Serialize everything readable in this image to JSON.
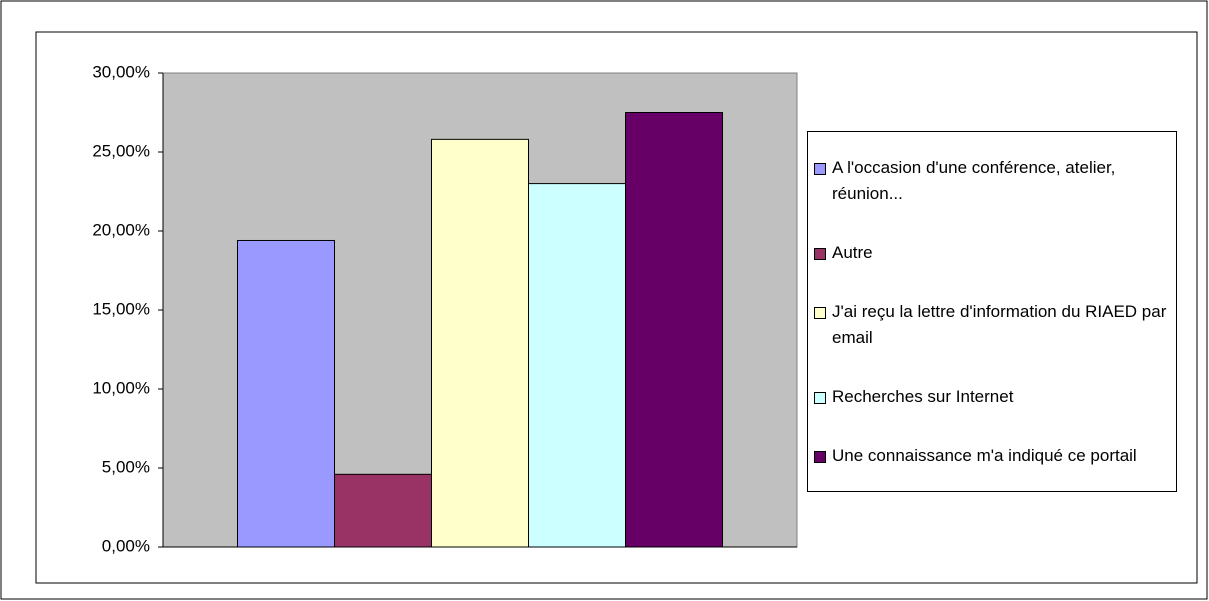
{
  "chart_data": {
    "type": "bar",
    "categories": [
      null
    ],
    "series": [
      {
        "name": "A l'occasion d'une conférence, atelier, réunion...",
        "color": "#9999ff",
        "values": [
          19.4
        ]
      },
      {
        "name": "Autre",
        "color": "#993366",
        "values": [
          4.6
        ]
      },
      {
        "name": "J'ai reçu la lettre d'information du RIAED par email",
        "color": "#ffffcc",
        "values": [
          25.8
        ]
      },
      {
        "name": "Recherches sur Internet",
        "color": "#ccffff",
        "values": [
          23.0
        ]
      },
      {
        "name": "Une connaissance m'a indiqué ce portail",
        "color": "#660066",
        "values": [
          27.5
        ]
      }
    ],
    "ylim": [
      0,
      30
    ],
    "yticks": [
      {
        "value": 0,
        "label": "0,00%"
      },
      {
        "value": 5,
        "label": "5,00%"
      },
      {
        "value": 10,
        "label": "10,00%"
      },
      {
        "value": 15,
        "label": "15,00%"
      },
      {
        "value": 20,
        "label": "20,00%"
      },
      {
        "value": 25,
        "label": "25,00%"
      },
      {
        "value": 30,
        "label": "30,00%"
      }
    ],
    "grid": false,
    "plot_background": "#c0c0c0",
    "legend": "right"
  }
}
